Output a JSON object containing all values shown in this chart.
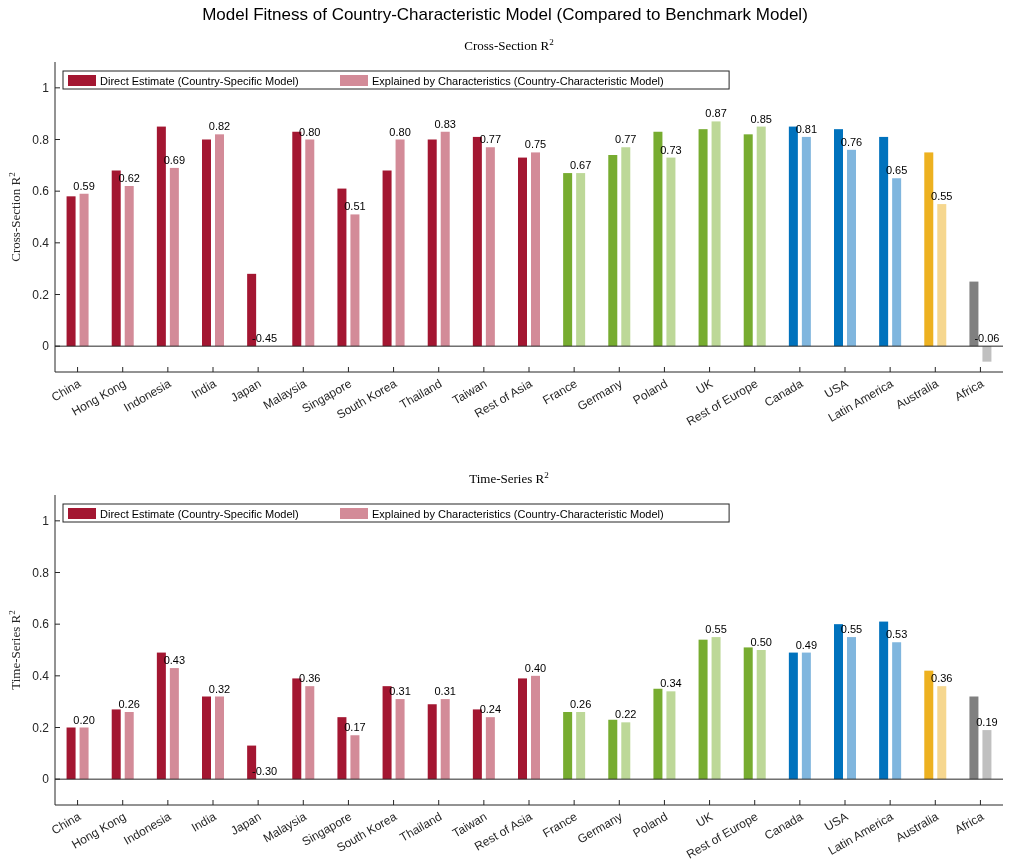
{
  "chart_data": [
    {
      "type": "bar",
      "title": "Model Fitness of Country-Characteristic Model (Compared to Benchmark Model)",
      "subtitle": "Cross-Section R$^{2}$",
      "ylabel": "Cross-Section R$^{2}$",
      "categories": [
        "China",
        "Hong Kong",
        "Indonesia",
        "India",
        "Japan",
        "Malaysia",
        "Singapore",
        "South Korea",
        "Thailand",
        "Taiwan",
        "Rest of Asia",
        "France",
        "Germany",
        "Poland",
        "UK",
        "Rest of Europe",
        "Canada",
        "USA",
        "Latin America",
        "Australia",
        "Africa"
      ],
      "series": [
        {
          "name": "Direct Estimate (Country-Specific Model)",
          "color": "#a31631",
          "colors": [
            "#a31631",
            "#a31631",
            "#a31631",
            "#a31631",
            "#a31631",
            "#a31631",
            "#a31631",
            "#a31631",
            "#a31631",
            "#a31631",
            "#a31631",
            "#77ac30",
            "#77ac30",
            "#77ac30",
            "#77ac30",
            "#77ac30",
            "#0072bd",
            "#0072bd",
            "#0072bd",
            "#edb120",
            "#808080"
          ],
          "values": [
            0.58,
            0.68,
            0.85,
            0.8,
            0.28,
            0.83,
            0.61,
            0.68,
            0.8,
            0.81,
            0.73,
            0.67,
            0.74,
            0.83,
            0.84,
            0.82,
            0.85,
            0.84,
            0.81,
            0.75,
            0.25
          ]
        },
        {
          "name": "Explained by Characteristics (Country-Characteristic Model)",
          "color": "#d38b98",
          "colors": [
            "#d38b98",
            "#d38b98",
            "#d38b98",
            "#d38b98",
            null,
            "#d38b98",
            "#d38b98",
            "#d38b98",
            "#d38b98",
            "#d38b98",
            "#d38b98",
            "#bdd898",
            "#bdd898",
            "#bdd898",
            "#bdd898",
            "#bdd898",
            "#80b6de",
            "#80b6de",
            "#80b6de",
            "#f6d78f",
            "#c0c0c0"
          ],
          "values": [
            0.59,
            0.62,
            0.69,
            0.82,
            null,
            0.8,
            0.51,
            0.8,
            0.83,
            0.77,
            0.75,
            0.67,
            0.77,
            0.73,
            0.87,
            0.85,
            0.81,
            0.76,
            0.65,
            0.55,
            -0.06
          ],
          "value_labels": [
            "0.59",
            "0.62",
            "0.69",
            "0.82",
            "-0.45",
            "0.80",
            "0.51",
            "0.80",
            "0.83",
            "0.77",
            "0.75",
            "0.67",
            "0.77",
            "0.73",
            "0.87",
            "0.85",
            "0.81",
            "0.76",
            "0.65",
            "0.55",
            "-0.06"
          ]
        }
      ],
      "ylim": [
        -0.1,
        1.1
      ],
      "yticks": [
        0,
        0.2,
        0.4,
        0.6,
        0.8,
        1
      ],
      "legend": "top left",
      "ref_lines": [
        {
          "axis": "y",
          "value": 0
        }
      ]
    },
    {
      "type": "bar",
      "subtitle": "Time-Series R$^{2}$",
      "ylabel": "Time-Series R$^{2}$",
      "categories": [
        "China",
        "Hong Kong",
        "Indonesia",
        "India",
        "Japan",
        "Malaysia",
        "Singapore",
        "South Korea",
        "Thailand",
        "Taiwan",
        "Rest of Asia",
        "France",
        "Germany",
        "Poland",
        "UK",
        "Rest of Europe",
        "Canada",
        "USA",
        "Latin America",
        "Australia",
        "Africa"
      ],
      "series": [
        {
          "name": "Direct Estimate (Country-Specific Model)",
          "color": "#a31631",
          "colors": [
            "#a31631",
            "#a31631",
            "#a31631",
            "#a31631",
            "#a31631",
            "#a31631",
            "#a31631",
            "#a31631",
            "#a31631",
            "#a31631",
            "#a31631",
            "#77ac30",
            "#77ac30",
            "#77ac30",
            "#77ac30",
            "#77ac30",
            "#0072bd",
            "#0072bd",
            "#0072bd",
            "#edb120",
            "#808080"
          ],
          "values": [
            0.2,
            0.27,
            0.49,
            0.32,
            0.13,
            0.39,
            0.24,
            0.36,
            0.29,
            0.27,
            0.39,
            0.26,
            0.23,
            0.35,
            0.54,
            0.51,
            0.49,
            0.6,
            0.61,
            0.42,
            0.32
          ]
        },
        {
          "name": "Explained by Characteristics (Country-Characteristic Model)",
          "color": "#d38b98",
          "colors": [
            "#d38b98",
            "#d38b98",
            "#d38b98",
            "#d38b98",
            null,
            "#d38b98",
            "#d38b98",
            "#d38b98",
            "#d38b98",
            "#d38b98",
            "#d38b98",
            "#bdd898",
            "#bdd898",
            "#bdd898",
            "#bdd898",
            "#bdd898",
            "#80b6de",
            "#80b6de",
            "#80b6de",
            "#f6d78f",
            "#c0c0c0"
          ],
          "values": [
            0.2,
            0.26,
            0.43,
            0.32,
            null,
            0.36,
            0.17,
            0.31,
            0.31,
            0.24,
            0.4,
            0.26,
            0.22,
            0.34,
            0.55,
            0.5,
            0.49,
            0.55,
            0.53,
            0.36,
            0.19
          ],
          "value_labels": [
            "0.20",
            "0.26",
            "0.43",
            "0.32",
            "-0.30",
            "0.36",
            "0.17",
            "0.31",
            "0.31",
            "0.24",
            "0.40",
            "0.26",
            "0.22",
            "0.34",
            "0.55",
            "0.50",
            "0.49",
            "0.55",
            "0.53",
            "0.36",
            "0.19"
          ]
        }
      ],
      "ylim": [
        -0.1,
        1.1
      ],
      "yticks": [
        0,
        0.2,
        0.4,
        0.6,
        0.8,
        1
      ],
      "legend": "top left",
      "ref_lines": [
        {
          "axis": "y",
          "value": 0
        }
      ]
    }
  ]
}
